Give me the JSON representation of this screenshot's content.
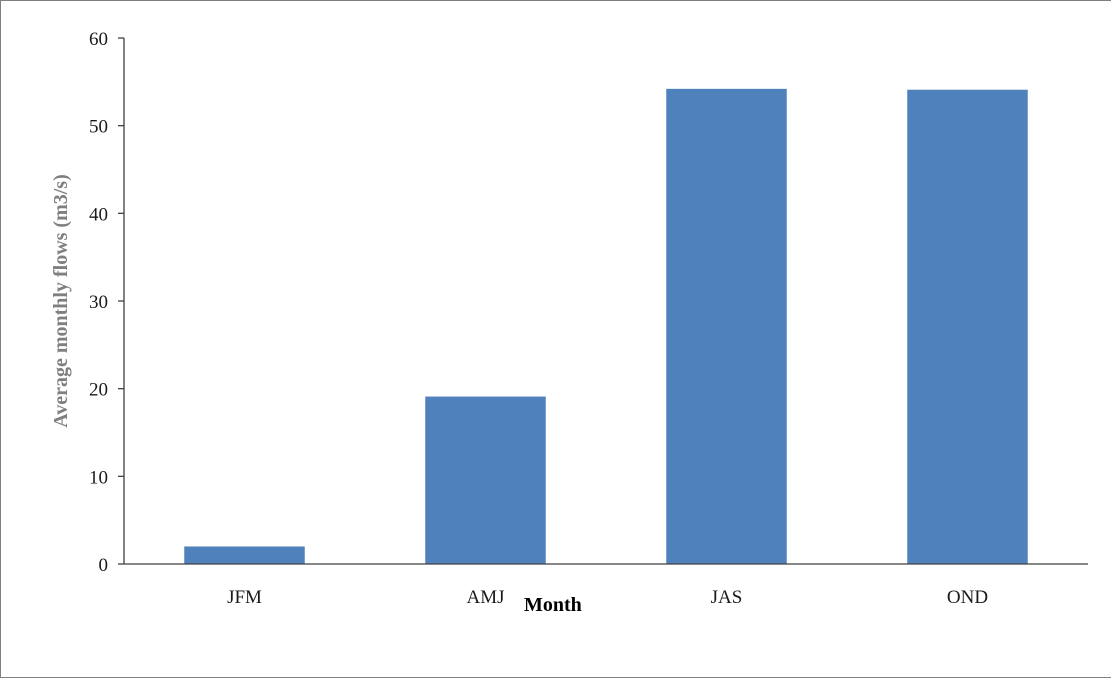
{
  "chart_data": {
    "type": "bar",
    "title": "",
    "xlabel": "Month",
    "ylabel": "Average monthly flows (m3/s)",
    "categories": [
      "JFM",
      "AMJ",
      "JAS",
      "OND"
    ],
    "values": [
      2.0,
      19.1,
      54.2,
      54.1
    ],
    "ylim": [
      0,
      60
    ],
    "yticks": [
      "0",
      "10",
      "20",
      "30",
      "40",
      "50",
      "60"
    ],
    "grid": false,
    "legend": "none",
    "colors": {
      "bar": "#4f81bd",
      "axis": "#404040",
      "xlabel": "#000000",
      "ylabel": "#7f7f7f"
    }
  }
}
